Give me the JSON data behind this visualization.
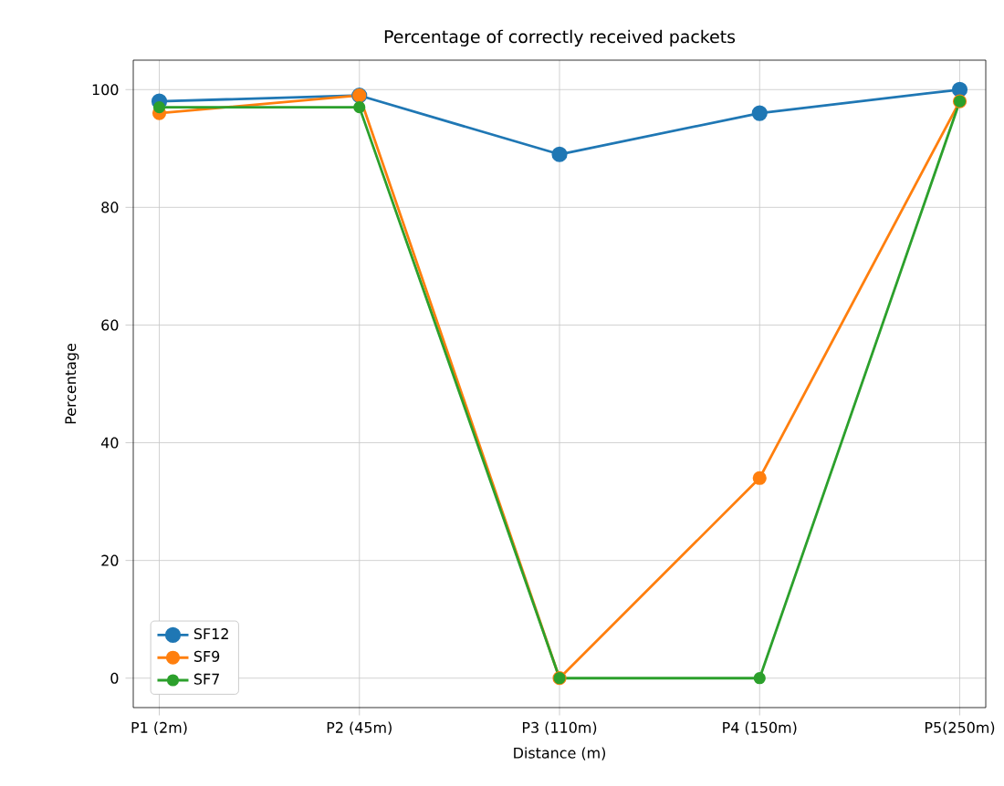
{
  "chart_data": {
    "type": "line",
    "title": "Percentage of correctly received packets",
    "xlabel": "Distance (m)",
    "ylabel": "Percentage",
    "categories": [
      "P1 (2m)",
      "P2 (45m)",
      "P3 (110m)",
      "P4 (150m)",
      "P5(250m)"
    ],
    "series": [
      {
        "name": "SF12",
        "color": "#1f77b4",
        "values": [
          98,
          99,
          89,
          96,
          100
        ]
      },
      {
        "name": "SF9",
        "color": "#ff7f0e",
        "values": [
          96,
          99,
          0,
          34,
          98
        ]
      },
      {
        "name": "SF7",
        "color": "#2ca02c",
        "values": [
          97,
          97,
          0,
          0,
          98
        ]
      }
    ],
    "ylim": [
      -5,
      105
    ],
    "yticks": [
      0,
      20,
      40,
      60,
      80,
      100
    ],
    "grid": true,
    "legend": "bottom left",
    "marker": "circle",
    "line_style": "solid"
  }
}
